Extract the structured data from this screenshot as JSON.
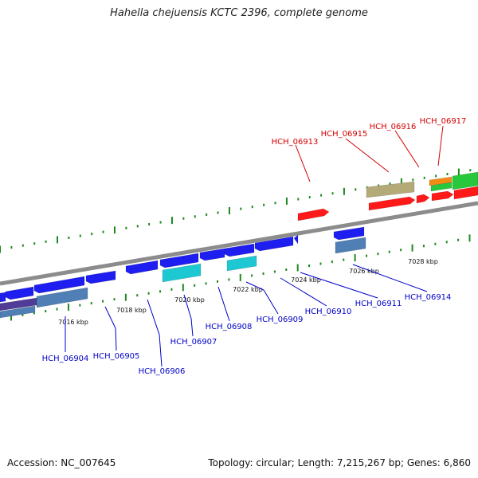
{
  "title": "Hahella chejuensis KCTC 2396, complete genome",
  "footer": {
    "accession": "Accession: NC_007645",
    "summary": "Topology: circular; Length: 7,215,267 bp; Genes: 6,860"
  },
  "colors": {
    "backbone": "#8c8c8c",
    "tick": "#1c8a1c",
    "forward_label": "#d40000",
    "reverse_label": "#0000c8",
    "forward_cds": "#ff1a1a",
    "reverse_cds": "#1e1ef0",
    "cyan_feature": "#1ec8d2",
    "tan_feature": "#b4aa78",
    "steel_feature": "#4f7fb4",
    "purple_feature": "#503c96",
    "orange_feature": "#f08c14",
    "green_feature": "#28c83c"
  },
  "kbp_labels": [
    "7016 kbp",
    "7018 kbp",
    "7020 kbp",
    "7022 kbp",
    "7024 kbp",
    "7026 kbp",
    "7028 kbp"
  ],
  "forward_genes": [
    "HCH_06913",
    "HCH_06915",
    "HCH_06916",
    "HCH_06917"
  ],
  "reverse_genes": [
    "HCH_06904",
    "HCH_06905",
    "HCH_06906",
    "HCH_06907",
    "HCH_06908",
    "HCH_06909",
    "HCH_06910",
    "HCH_06911",
    "HCH_06914"
  ]
}
